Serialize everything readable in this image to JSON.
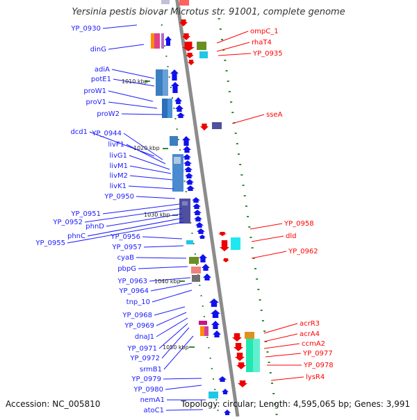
{
  "title": "Yersinia pestis biovar Microtus str. 91001, complete genome",
  "footer": {
    "accession": "Accession: NC_005810",
    "summary": "Topology: circular; Length: 4,595,065 bp; Genes: 3,991"
  },
  "colors": {
    "backbone": "#8c8c8c",
    "forward_label": "#1a1aff",
    "reverse_label": "#ff0000",
    "forward_gene": "#1010ee",
    "reverse_gene": "#ee0000",
    "tick": "#2e8b2e"
  },
  "scale_labels": [
    "1010 kbp",
    "1020 kbp",
    "1030 kbp",
    "1040 kbp",
    "1050 kbp"
  ],
  "forward_genes": [
    "YP_0930",
    "dinG",
    "adiA",
    "potE1",
    "proW1",
    "proV1",
    "proW2",
    "dcd1",
    "YP_0944",
    "livF1",
    "livG1",
    "livM1",
    "livM2",
    "livK1",
    "YP_0950",
    "YP_0951",
    "YP_0952",
    "phnD",
    "phnC",
    "YP_0955",
    "YP_0956",
    "YP_0957",
    "cyaB",
    "pbpG",
    "YP_0963",
    "YP_0964",
    "tnp_10",
    "YP_0968",
    "YP_0969",
    "dnaJ1",
    "YP_0971",
    "YP_0972",
    "srmB1",
    "YP_0979",
    "YP_0980",
    "nemA1",
    "atoC1"
  ],
  "reverse_genes": [
    "ompC_1",
    "rhaT4",
    "YP_0935",
    "sseA",
    "YP_0958",
    "dld",
    "YP_0962",
    "acrR3",
    "acrA4",
    "ccmA2",
    "YP_0977",
    "YP_0978",
    "lysR4"
  ]
}
